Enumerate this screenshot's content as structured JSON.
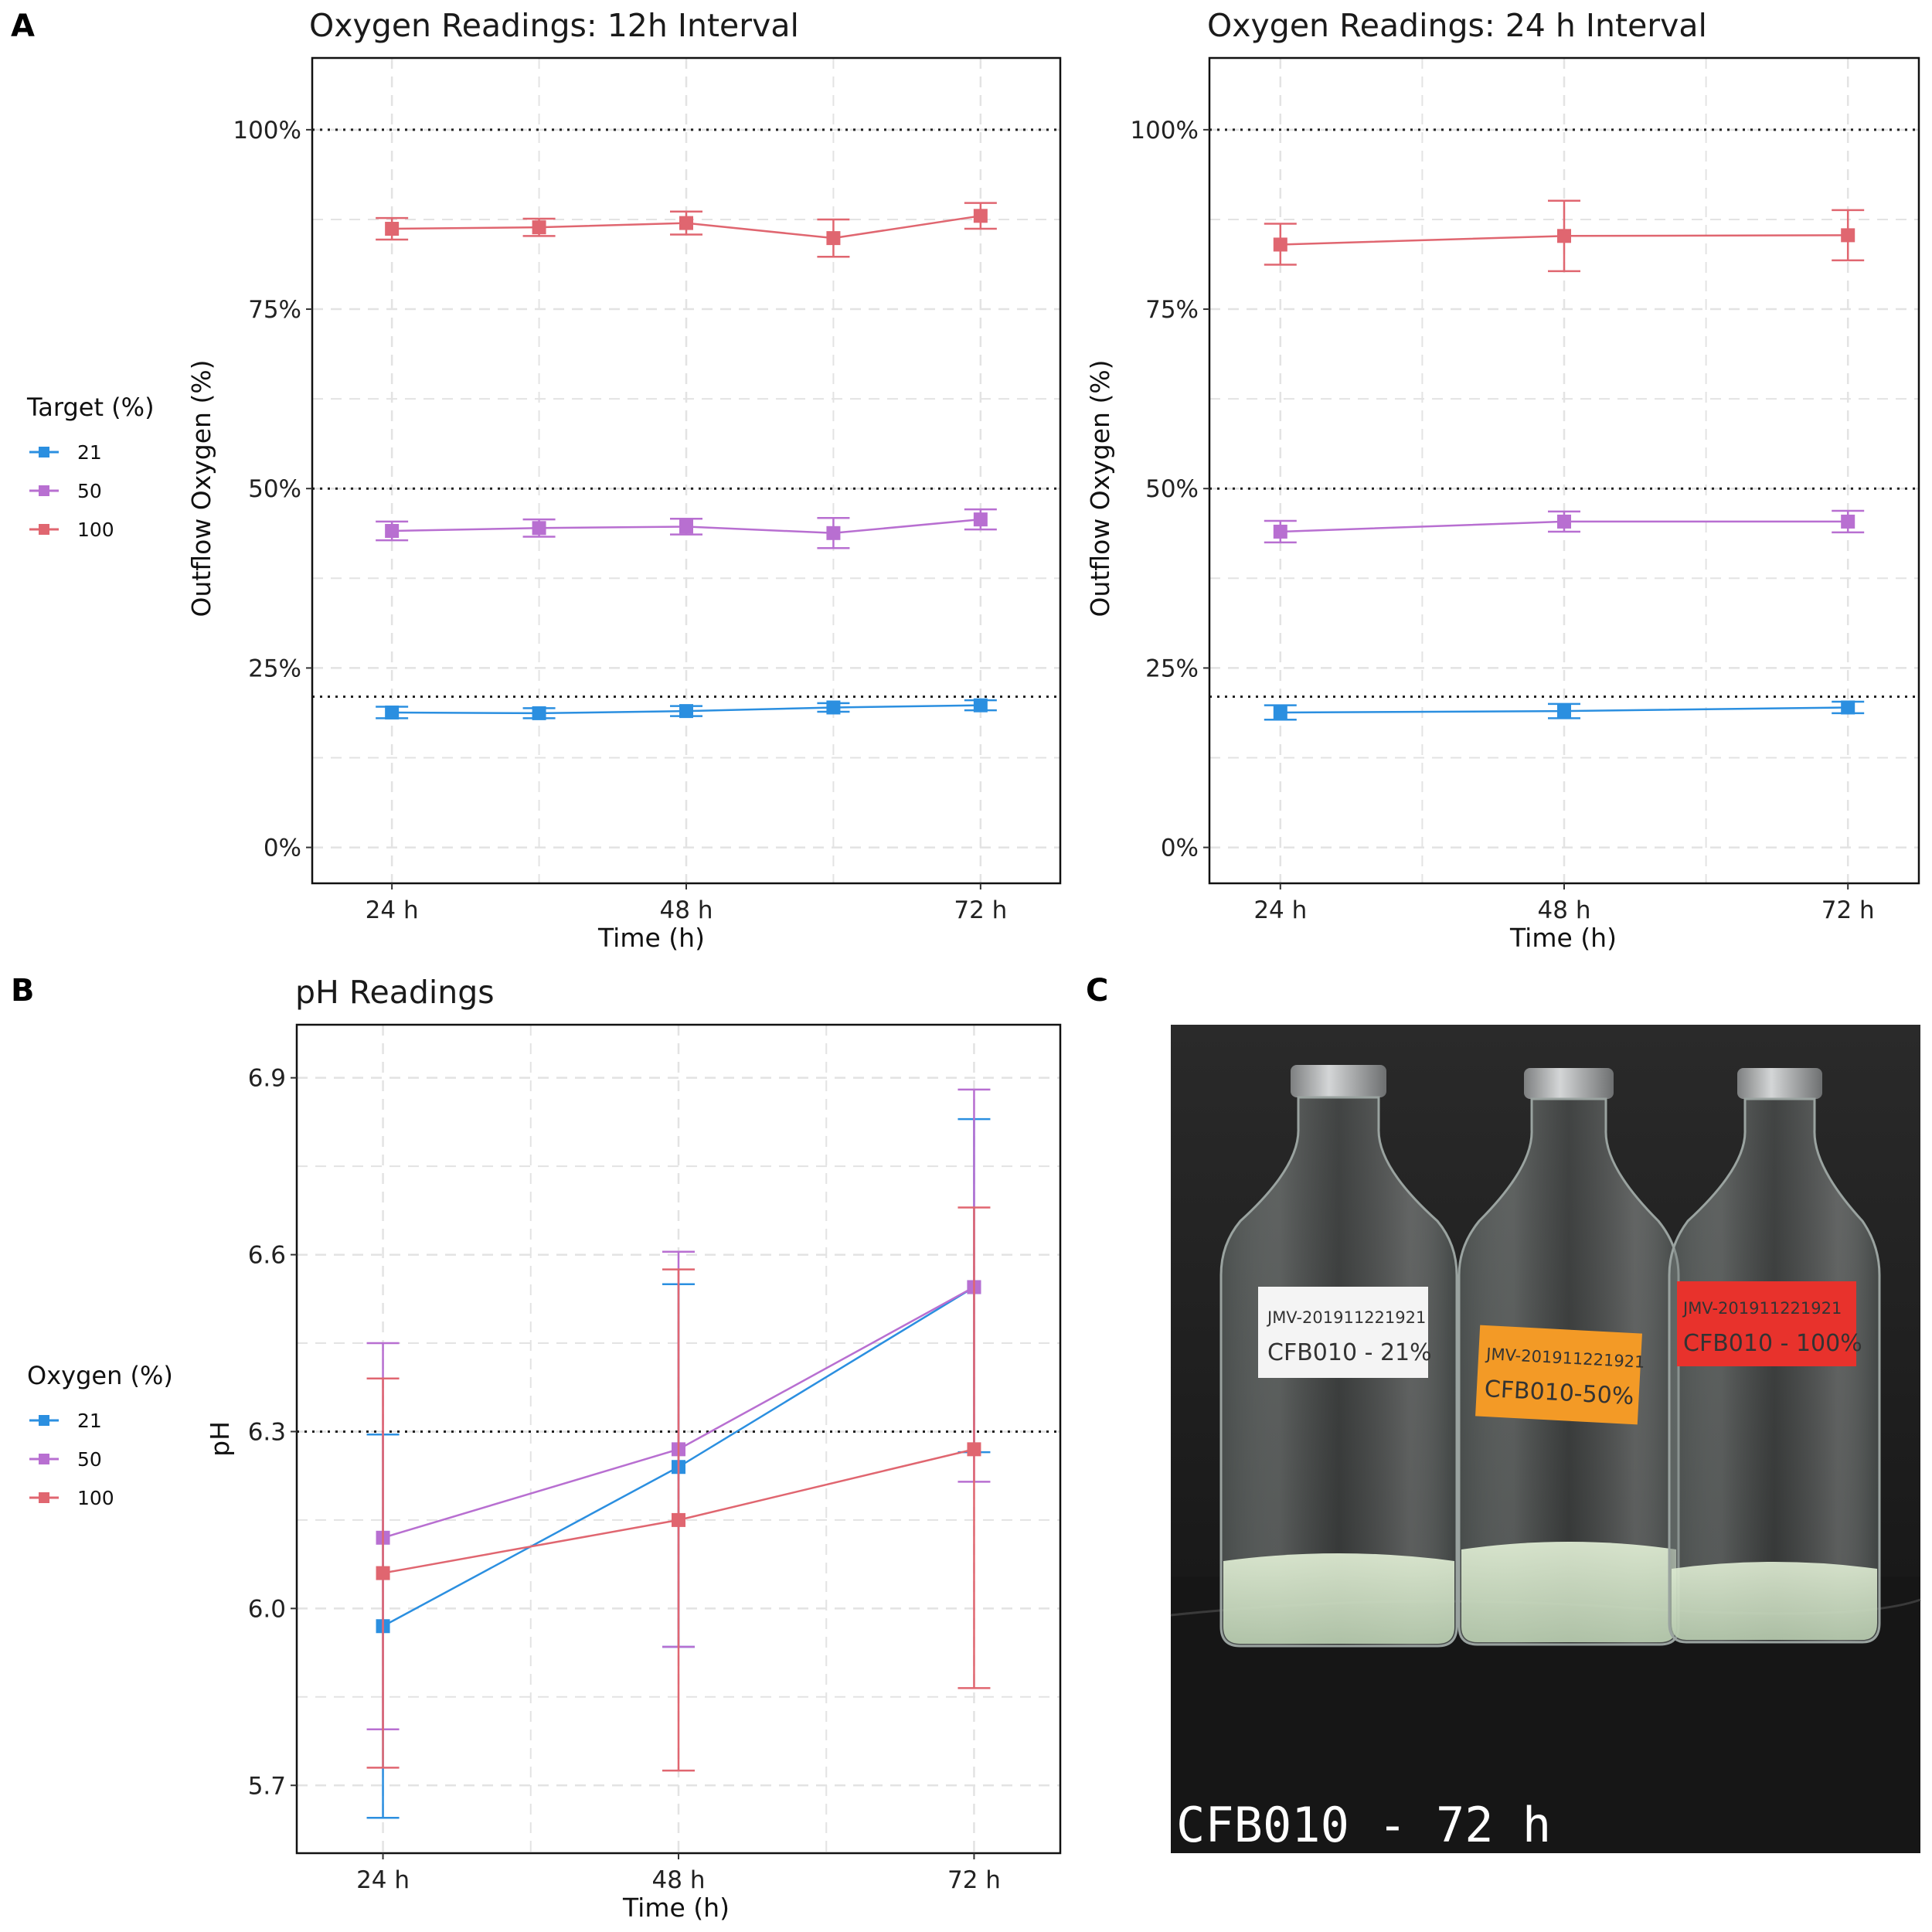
{
  "panels": {
    "A": "A",
    "B": "B",
    "C": "C"
  },
  "colors": {
    "21": "#2b8fe0",
    "50": "#b86fd1",
    "100": "#e06670"
  },
  "legend_A": {
    "title": "Target (%)",
    "items": [
      "21",
      "50",
      "100"
    ]
  },
  "legend_B": {
    "title": "Oxygen (%)",
    "items": [
      "21",
      "50",
      "100"
    ]
  },
  "chart_data": [
    {
      "type": "line",
      "title": "Oxygen Readings: 12h Interval",
      "xlabel": "Time (h)",
      "ylabel": "Outflow Oxygen (%)",
      "xlim": [
        17.5,
        78.5
      ],
      "ylim": [
        -5,
        110
      ],
      "x_ticks": [
        24,
        48,
        72
      ],
      "x_tick_labels": [
        "24 h",
        "48 h",
        "72 h"
      ],
      "y_ticks": [
        0,
        25,
        50,
        75,
        100
      ],
      "y_tick_labels": [
        "0%",
        "25%",
        "50%",
        "75%",
        "100%"
      ],
      "reference_lines": [
        21,
        50,
        100
      ],
      "x": [
        24,
        36,
        48,
        60,
        72
      ],
      "series": [
        {
          "name": "21",
          "values": [
            18.8,
            18.7,
            19.0,
            19.5,
            19.8
          ],
          "err_low": [
            18.0,
            18.0,
            18.3,
            18.9,
            19.1
          ],
          "err_high": [
            19.6,
            19.4,
            19.7,
            20.1,
            20.5
          ]
        },
        {
          "name": "50",
          "values": [
            44.1,
            44.5,
            44.7,
            43.8,
            45.7
          ],
          "err_low": [
            42.8,
            43.3,
            43.6,
            41.7,
            44.3
          ],
          "err_high": [
            45.4,
            45.7,
            45.8,
            45.9,
            47.1
          ]
        },
        {
          "name": "100",
          "values": [
            86.2,
            86.4,
            87.0,
            84.9,
            88.0
          ],
          "err_low": [
            84.7,
            85.2,
            85.4,
            82.3,
            86.2
          ],
          "err_high": [
            87.7,
            87.6,
            88.6,
            87.5,
            89.8
          ]
        }
      ]
    },
    {
      "type": "line",
      "title": "Oxygen Readings: 24 h Interval",
      "xlabel": "Time (h)",
      "ylabel": "Outflow Oxygen (%)",
      "xlim": [
        18,
        78
      ],
      "ylim": [
        -5,
        110
      ],
      "x_ticks": [
        24,
        48,
        72
      ],
      "x_tick_labels": [
        "24 h",
        "48 h",
        "72 h"
      ],
      "y_ticks": [
        0,
        25,
        50,
        75,
        100
      ],
      "y_tick_labels": [
        "0%",
        "25%",
        "50%",
        "75%",
        "100%"
      ],
      "reference_lines": [
        21,
        50,
        100
      ],
      "x": [
        24,
        48,
        72
      ],
      "series": [
        {
          "name": "21",
          "values": [
            18.8,
            19.0,
            19.5
          ],
          "err_low": [
            17.8,
            18.0,
            18.7
          ],
          "err_high": [
            19.8,
            20.0,
            20.3
          ]
        },
        {
          "name": "50",
          "values": [
            44.0,
            45.4,
            45.4
          ],
          "err_low": [
            42.5,
            44.0,
            43.9
          ],
          "err_high": [
            45.5,
            46.8,
            46.9
          ]
        },
        {
          "name": "100",
          "values": [
            84.0,
            85.2,
            85.3
          ],
          "err_low": [
            81.2,
            80.3,
            81.8
          ],
          "err_high": [
            86.9,
            90.1,
            88.8
          ]
        }
      ]
    },
    {
      "type": "line",
      "title": "pH Readings",
      "xlabel": "Time (h)",
      "ylabel": "pH",
      "xlim": [
        17,
        79
      ],
      "ylim": [
        5.585,
        6.99
      ],
      "x_ticks": [
        24,
        48,
        72
      ],
      "x_tick_labels": [
        "24 h",
        "48 h",
        "72 h"
      ],
      "y_ticks": [
        5.7,
        6.0,
        6.3,
        6.6,
        6.9
      ],
      "y_tick_labels": [
        "5.7",
        "6.0",
        "6.3",
        "6.6",
        "6.9"
      ],
      "reference_lines": [
        6.3
      ],
      "x": [
        24,
        48,
        72
      ],
      "series": [
        {
          "name": "21",
          "values": [
            5.97,
            6.24,
            6.545
          ],
          "err_low": [
            5.645,
            5.935,
            6.265
          ],
          "err_high": [
            6.295,
            6.55,
            6.83
          ]
        },
        {
          "name": "50",
          "values": [
            6.12,
            6.27,
            6.545
          ],
          "err_low": [
            5.795,
            5.935,
            6.215
          ],
          "err_high": [
            6.45,
            6.605,
            6.88
          ]
        },
        {
          "name": "100",
          "values": [
            6.06,
            6.15,
            6.27
          ],
          "err_low": [
            5.73,
            5.725,
            5.865
          ],
          "err_high": [
            6.39,
            6.575,
            6.68
          ]
        }
      ]
    }
  ],
  "photo": {
    "caption": "CFB010 - 72 h",
    "labels": [
      {
        "line1": "JMV-201911221921",
        "line2": "CFB010 - 21%"
      },
      {
        "line1": "JMV-201911221921",
        "line2": "CFB010-50%"
      },
      {
        "line1": "JMV-201911221921",
        "line2": "CFB010 - 100%"
      }
    ]
  }
}
